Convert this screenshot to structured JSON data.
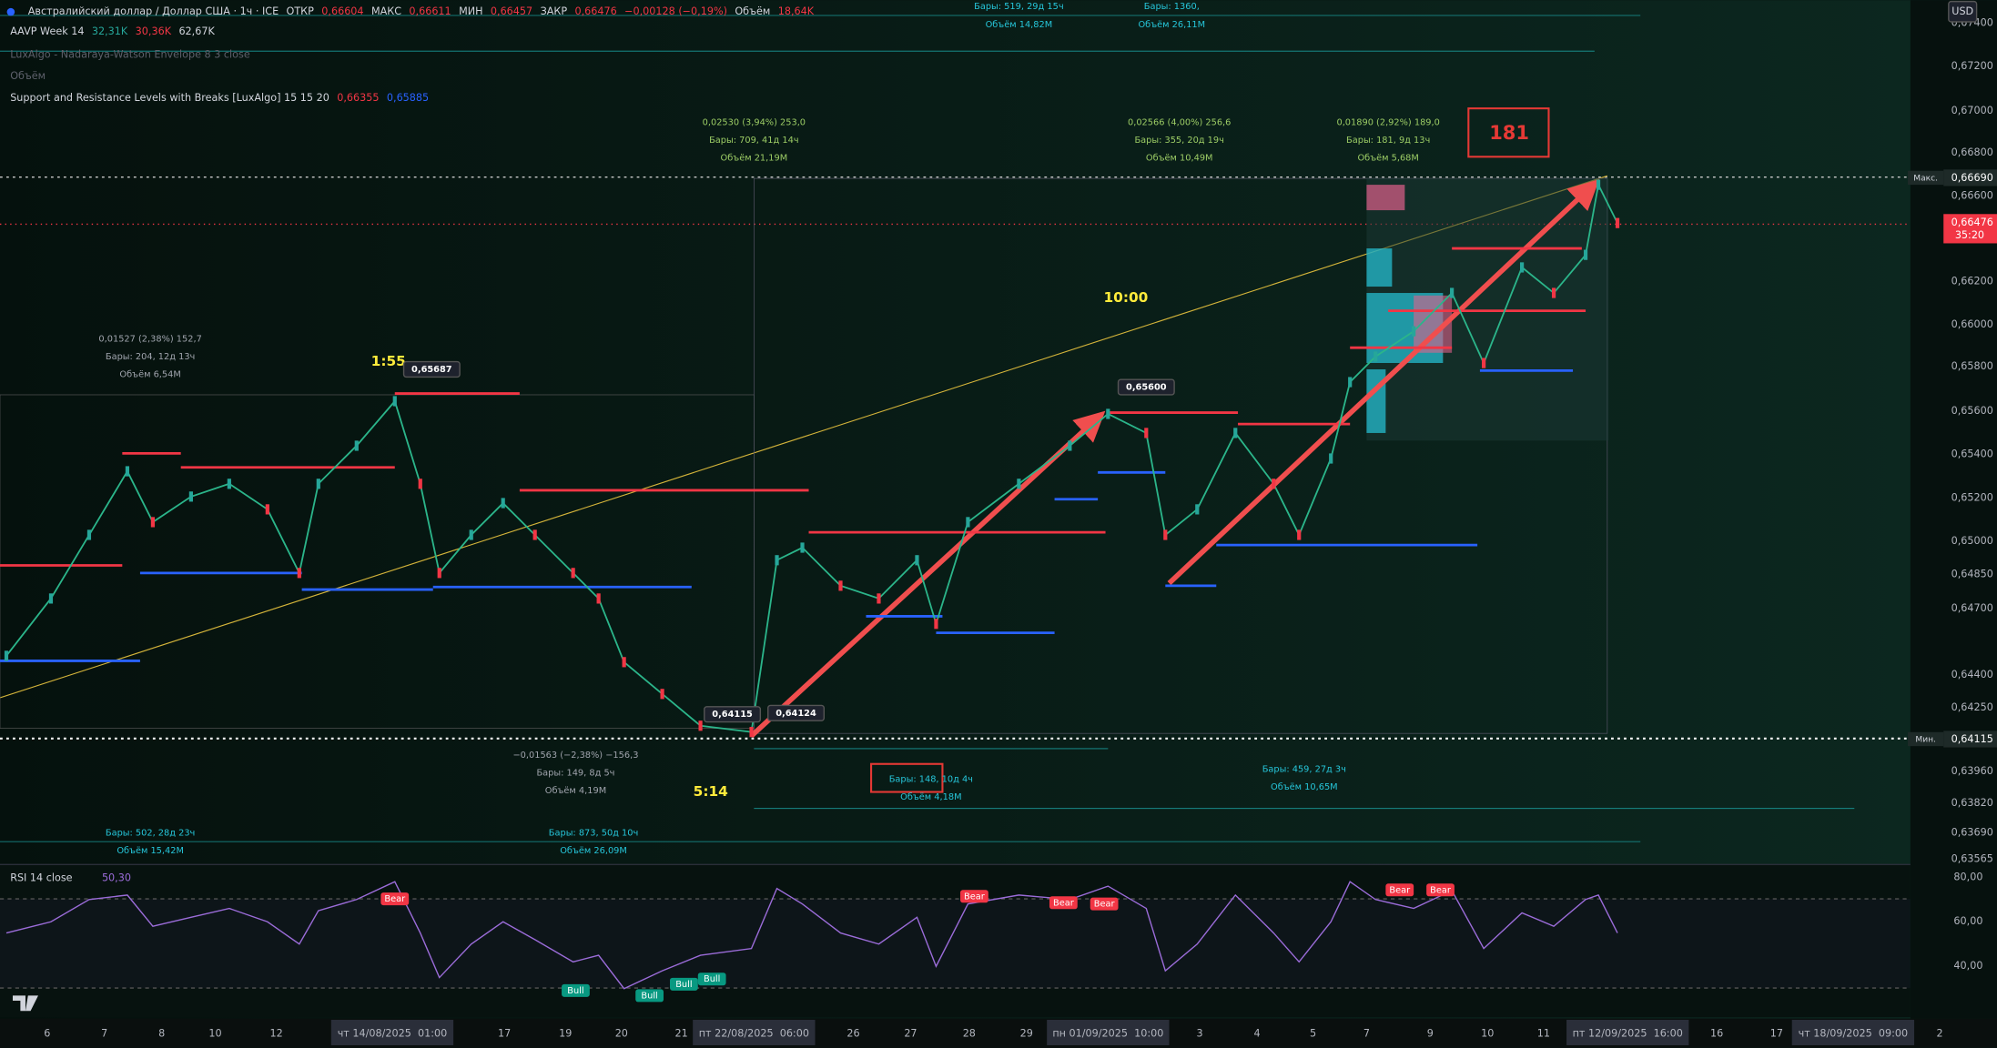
{
  "legend": [
    [
      {
        "text": "Австралийский доллар / Доллар США · 1ч · ICE",
        "color": "#d1d4dc"
      },
      {
        "text": "ОТКР",
        "color": "#d1d4dc"
      },
      {
        "text": "0,66604",
        "color": "#f23645"
      },
      {
        "text": "МАКС",
        "color": "#d1d4dc"
      },
      {
        "text": "0,66611",
        "color": "#f23645"
      },
      {
        "text": "МИН",
        "color": "#d1d4dc"
      },
      {
        "text": "0,66457",
        "color": "#f23645"
      },
      {
        "text": "ЗАКР",
        "color": "#d1d4dc"
      },
      {
        "text": "0,66476",
        "color": "#f23645"
      },
      {
        "text": "−0,00128 (−0,19%)",
        "color": "#f23645"
      },
      {
        "text": "Объём",
        "color": "#d1d4dc"
      },
      {
        "text": "18,64K",
        "color": "#f23645"
      }
    ],
    [
      {
        "text": "AAVP Week 14",
        "color": "#d1d4dc"
      },
      {
        "text": "32,31K",
        "color": "#26a69a"
      },
      {
        "text": "30,36K",
        "color": "#f23645"
      },
      {
        "text": "62,67K",
        "color": "#d1d4dc"
      }
    ],
    [
      {
        "text": "LuxAlgo - Nadaraya-Watson Envelope 8 3 close",
        "color": "#5d606b"
      }
    ],
    [
      {
        "text": "Объём",
        "color": "#5d606b"
      }
    ],
    [
      {
        "text": "Support and Resistance Levels with Breaks [LuxAlgo] 15 15 20",
        "color": "#d1d4dc"
      },
      {
        "text": "0,66355",
        "color": "#f23645"
      },
      {
        "text": "0,65885",
        "color": "#2962ff"
      }
    ]
  ],
  "price_axis": [
    "0,67400",
    "0,67200",
    "0,67000",
    "0,66800",
    "0,66600",
    "0,66200",
    "0,66000",
    "0,65800",
    "0,65600",
    "0,65400",
    "0,65200",
    "0,65000",
    "0,64850",
    "0,64700",
    "0,64400",
    "0,64250",
    "0,63960",
    "0,63820",
    "0,63690",
    "0,63565"
  ],
  "currency": "USD",
  "max_tag": {
    "label": "Макс.",
    "value": "0,66690"
  },
  "min_tag": {
    "label": "Мин.",
    "value": "0,64115"
  },
  "last_tag": {
    "value": "0,66476",
    "countdown": "35:20"
  },
  "price_values": [
    0.64476,
    0.64741,
    0.65035,
    0.65329,
    0.65094,
    0.65212,
    0.65271,
    0.65153,
    0.64859,
    0.65271,
    0.65447,
    0.65653,
    0.65271,
    0.64859,
    0.65035,
    0.65182,
    0.65035,
    0.64859,
    0.64741,
    0.64447,
    0.643,
    0.64153,
    0.64124,
    0.64918,
    0.64976,
    0.648,
    0.64741,
    0.64918,
    0.64624,
    0.65094,
    0.65271,
    0.65447,
    0.65594,
    0.65506,
    0.65035,
    0.65153,
    0.65506,
    0.65271,
    0.65035,
    0.65388,
    0.65741,
    0.65859,
    0.65976,
    0.66153,
    0.65829,
    0.66271,
    0.66153,
    0.66329,
    0.66653,
    0.66476
  ],
  "rsi": {
    "title": "RSI 14 close",
    "value": "50,30",
    "axis": [
      "80,00",
      "60,00",
      "40,00"
    ],
    "values": [
      55,
      60,
      70,
      72,
      58,
      62,
      66,
      60,
      50,
      65,
      70,
      78,
      55,
      35,
      50,
      60,
      52,
      42,
      45,
      30,
      38,
      45,
      48,
      75,
      68,
      55,
      50,
      62,
      40,
      68,
      72,
      70,
      76,
      66,
      38,
      50,
      72,
      55,
      42,
      60,
      78,
      70,
      66,
      74,
      48,
      64,
      58,
      70,
      72,
      55
    ]
  },
  "measures": [
    {
      "lines": [
        "Бары: 519, 29д 15ч",
        "Объём 14,82M"
      ]
    },
    {
      "lines": [
        "Бары: 1360,",
        "Объём 26,11M"
      ]
    },
    {
      "lines": [
        "0,01527 (2,38%) 152,7",
        "Бары: 204, 12д 13ч",
        "Объём 6,54M"
      ]
    },
    {
      "lines": [
        "0,02530 (3,94%) 253,0",
        "Бары: 709, 41д 14ч",
        "Объём 21,19M"
      ]
    },
    {
      "lines": [
        "0,02566 (4,00%) 256,6",
        "Бары: 355, 20д 19ч",
        "Объём 10,49M"
      ]
    },
    {
      "lines": [
        "0,01890 (2,92%) 189,0",
        "Бары: 181, 9д 13ч",
        "Объём 5,68M"
      ]
    },
    {
      "lines": [
        "−0,01563 (−2,38%) −156,3",
        "Бары: 149, 8д 5ч",
        "Объём 4,19M"
      ]
    },
    {
      "lines": [
        "Бары: 148, 10д 4ч",
        "Объём 4,18M"
      ]
    },
    {
      "lines": [
        "Бары: 459, 27д 3ч",
        "Объём 10,65M"
      ]
    },
    {
      "lines": [
        "Бары: 502, 28д 23ч",
        "Объём 15,42M"
      ]
    },
    {
      "lines": [
        "Бары: 873, 50д 10ч",
        "Объём 26,09M"
      ]
    }
  ],
  "annotations": [
    "1:55",
    "10:00",
    "5:14",
    "181"
  ],
  "price_labels": [
    "0,65687",
    "0,65600",
    "0,64115",
    "0,64124"
  ],
  "signals": [
    "Bear",
    "Bear",
    "Bear",
    "Bear",
    "Bear",
    "Bear",
    "Bull",
    "Bull",
    "Bull",
    "Bull"
  ],
  "dates": [
    "6",
    "7",
    "8",
    "10",
    "12",
    "чт 14/08/2025  01:00",
    "17",
    "19",
    "20",
    "21",
    "пт 22/08/2025  06:00",
    "26",
    "27",
    "28",
    "29",
    "пн 01/09/2025  10:00",
    "3",
    "4",
    "5",
    "7",
    "9",
    "10",
    "11",
    "пт 12/09/2025  16:00",
    "16",
    "17",
    "чт 18/09/2025  09:00",
    "2"
  ]
}
